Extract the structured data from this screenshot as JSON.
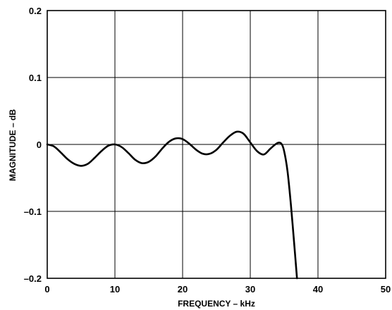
{
  "chart_data": {
    "type": "line",
    "title": "",
    "xlabel": "FREQUENCY – kHz",
    "ylabel": "MAGNITUDE – dB",
    "xlim": [
      0,
      50
    ],
    "ylim": [
      -0.2,
      0.2
    ],
    "grid": true,
    "x_ticks": [
      0,
      10,
      20,
      30,
      40,
      50
    ],
    "x_tick_labels": [
      "0",
      "10",
      "20",
      "30",
      "40",
      "50"
    ],
    "y_ticks": [
      -0.2,
      -0.1,
      0,
      0.1,
      0.2
    ],
    "y_tick_labels": [
      "–0.2",
      "–0.1",
      "0",
      "0.1",
      "0.2"
    ],
    "series": [
      {
        "color": "#000000",
        "x": [
          0,
          1,
          2,
          3,
          4,
          5,
          6,
          7,
          8,
          9,
          10,
          11,
          12,
          13,
          14,
          15,
          16,
          17,
          18,
          19,
          20,
          21,
          22,
          23,
          24,
          25,
          26,
          27,
          28,
          29,
          30,
          31,
          32,
          33,
          34,
          34.6,
          35,
          35.5,
          36,
          36.5,
          36.9
        ],
        "y": [
          0,
          -0.003,
          -0.012,
          -0.022,
          -0.029,
          -0.032,
          -0.029,
          -0.02,
          -0.01,
          -0.002,
          0,
          -0.004,
          -0.013,
          -0.023,
          -0.028,
          -0.026,
          -0.018,
          -0.006,
          0.004,
          0.009,
          0.008,
          0.001,
          -0.008,
          -0.014,
          -0.014,
          -0.008,
          0.003,
          0.013,
          0.019,
          0.016,
          0.003,
          -0.01,
          -0.015,
          -0.006,
          0.002,
          0.001,
          -0.01,
          -0.04,
          -0.09,
          -0.15,
          -0.2
        ]
      }
    ]
  }
}
